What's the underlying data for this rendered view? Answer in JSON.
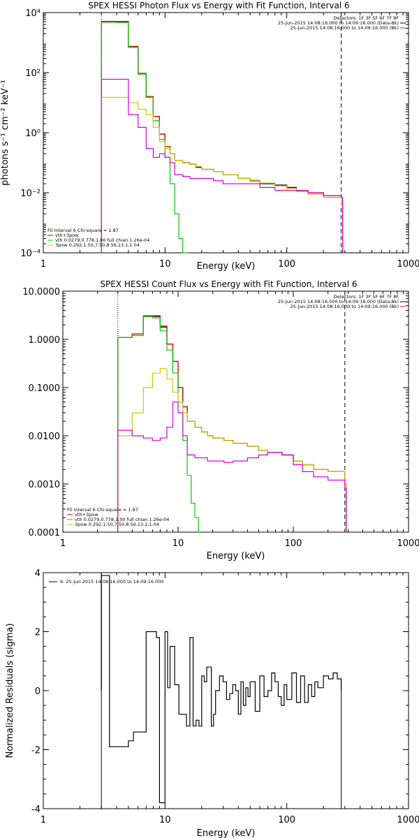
{
  "chart_data": [
    {
      "type": "line",
      "title": "SPEX HESSI Photon Flux vs Energy with Fit Function, Interval 6",
      "xlabel": "Energy (keV)",
      "ylabel": "photons s⁻¹ cm⁻² keV⁻¹",
      "xscale": "log",
      "yscale": "log",
      "xlim": [
        1,
        1000
      ],
      "ylim": [
        0.0001,
        10000
      ],
      "xticks": [
        "1",
        "10",
        "100",
        "1000"
      ],
      "yticks": [
        "10⁻⁴",
        "10⁻²",
        "10⁰",
        "10²",
        "10⁴"
      ],
      "ytick_values": [
        0.0001,
        0.01,
        1,
        100,
        10000
      ],
      "vlines": [
        {
          "x": 3,
          "style": "dotted"
        },
        {
          "x": 280,
          "style": "dashed"
        }
      ],
      "legend_right": [
        "Detectors: 1F 3F 5F 6F 7F 8F",
        "25-Jun-2015 14:08:16.000 to 14:09:16.000 (Data-Bk)",
        "25-Jun-2015 14:08:16.000 to 14:09:16.000 (Bk)"
      ],
      "legend_left": [
        "Fit Interval 6   Chi-square = 1.87",
        "vth+3pow",
        "vth 0.0279,0.778,1.00  full chian 1.26e-04",
        "3pow 0.292,1.50,7.50,8.56,13.1,1.04"
      ],
      "series": [
        {
          "name": "Data-Bk",
          "color": "#000000",
          "x": [
            3,
            4,
            5,
            6,
            7,
            8,
            9,
            10,
            11,
            12,
            14,
            16,
            18,
            20,
            25,
            30,
            40,
            50,
            60,
            80,
            100,
            120,
            150,
            200,
            280
          ],
          "y": [
            5000,
            5000,
            700,
            90,
            15,
            3.5,
            0.9,
            0.3,
            0.2,
            0.12,
            0.1,
            0.09,
            0.07,
            0.06,
            0.05,
            0.04,
            0.03,
            0.025,
            0.02,
            0.018,
            0.015,
            0.012,
            0.01,
            0.008,
            0.004
          ]
        },
        {
          "name": "vth+3pow",
          "color": "#e00000",
          "x": [
            3,
            4,
            5,
            6,
            7,
            8,
            9,
            10,
            11,
            12,
            14,
            16,
            18,
            20,
            25,
            30,
            40,
            50,
            60,
            80,
            100,
            120,
            150,
            200,
            280
          ],
          "y": [
            4800,
            4800,
            750,
            95,
            16,
            3.5,
            0.9,
            0.35,
            0.2,
            0.12,
            0.1,
            0.09,
            0.075,
            0.06,
            0.05,
            0.04,
            0.03,
            0.026,
            0.021,
            0.017,
            0.014,
            0.011,
            0.009,
            0.007,
            0.004
          ]
        },
        {
          "name": "vth",
          "color": "#00cc00",
          "x": [
            3,
            4,
            5,
            6,
            7,
            8,
            9,
            10,
            11,
            12,
            13,
            14,
            15
          ],
          "y": [
            4800,
            4700,
            700,
            90,
            15,
            2.5,
            0.6,
            0.15,
            0.02,
            0.002,
            0.0003,
            0.0001,
            0.0001
          ]
        },
        {
          "name": "3pow",
          "color": "#cccc00",
          "x": [
            3,
            4,
            5,
            6,
            7,
            8,
            9,
            10,
            11,
            12,
            14,
            16,
            18,
            20,
            25,
            30,
            40,
            50,
            60,
            80,
            100,
            120,
            150,
            200,
            280
          ],
          "y": [
            15,
            15,
            10,
            6,
            4,
            1.5,
            0.5,
            0.3,
            0.2,
            0.12,
            0.1,
            0.09,
            0.075,
            0.06,
            0.05,
            0.04,
            0.03,
            0.026,
            0.021,
            0.017,
            0.014,
            0.011,
            0.009,
            0.007,
            0.004
          ]
        },
        {
          "name": "Bk",
          "color": "#dd00dd",
          "x": [
            3,
            4,
            5,
            6,
            7,
            8,
            9,
            10,
            11,
            12,
            14,
            16,
            18,
            20,
            25,
            30,
            40,
            50,
            60,
            80,
            100,
            120,
            150,
            200,
            280
          ],
          "y": [
            60,
            60,
            4,
            1.5,
            0.3,
            0.15,
            0.2,
            0.15,
            0.1,
            0.04,
            0.035,
            0.03,
            0.03,
            0.03,
            0.025,
            0.02,
            0.02,
            0.02,
            0.015,
            0.012,
            0.012,
            0.012,
            0.01,
            0.008,
            0.007
          ]
        }
      ]
    },
    {
      "type": "line",
      "title": "SPEX HESSI Count Flux vs Energy with Fit Function, Interval 6",
      "xlabel": "Energy (keV)",
      "ylabel": "",
      "xscale": "log",
      "yscale": "log",
      "xlim": [
        1,
        1000
      ],
      "ylim": [
        0.0001,
        10
      ],
      "xticks": [
        "1",
        "10",
        "100",
        "1000"
      ],
      "yticks": [
        "0.0001",
        "0.0010",
        "0.0100",
        "0.1000",
        "1.0000",
        "10.0000"
      ],
      "ytick_values": [
        0.0001,
        0.001,
        0.01,
        0.1,
        1,
        10
      ],
      "vlines": [
        {
          "x": 3,
          "style": "dotted"
        },
        {
          "x": 280,
          "style": "dashed"
        }
      ],
      "legend_right": [
        "Detectors: 1F 3F 5F 6F 7F 8F",
        "25-Jun-2015 14:08:16.000 to 14:09:16.000 (Data-Bk)",
        "25-Jun-2015 14:08:16.000 to 14:09:16.000 (Bk)"
      ],
      "legend_left": [
        "Fit Interval 6   Chi-square = 1.87",
        "vth+3pow",
        "vth 0.0279,0.778,1.00  full chian 1.26e-04",
        "3pow 0.292,1.50,7.50,8.56,13.1,1.04"
      ],
      "series": [
        {
          "name": "Data-Bk",
          "color": "#000000",
          "x": [
            3,
            4,
            5,
            6,
            7,
            8,
            9,
            10,
            11,
            12,
            14,
            16,
            18,
            20,
            25,
            30,
            40,
            50,
            60,
            80,
            100,
            120,
            150,
            200,
            280
          ],
          "y": [
            1.1,
            1.3,
            3,
            3,
            1.8,
            0.8,
            0.35,
            0.1,
            0.04,
            0.02,
            0.015,
            0.012,
            0.01,
            0.009,
            0.008,
            0.007,
            0.006,
            0.005,
            0.0045,
            0.004,
            0.003,
            0.0025,
            0.002,
            0.0018,
            0.001
          ]
        },
        {
          "name": "vth+3pow",
          "color": "#e00000",
          "x": [
            3,
            4,
            5,
            6,
            7,
            8,
            9,
            10,
            11,
            12,
            14,
            16,
            18,
            20,
            25,
            30,
            40,
            50,
            60,
            80,
            100,
            120,
            150,
            200,
            280
          ],
          "y": [
            1.1,
            1.3,
            3.1,
            3.1,
            1.9,
            0.8,
            0.35,
            0.1,
            0.04,
            0.02,
            0.015,
            0.012,
            0.01,
            0.009,
            0.008,
            0.007,
            0.006,
            0.005,
            0.0045,
            0.004,
            0.003,
            0.0025,
            0.002,
            0.0018,
            0.001
          ]
        },
        {
          "name": "vth",
          "color": "#00cc00",
          "x": [
            3,
            4,
            5,
            6,
            7,
            8,
            9,
            10,
            11,
            12,
            13,
            14,
            15
          ],
          "y": [
            1.1,
            1.2,
            3,
            2.8,
            1.5,
            0.6,
            0.2,
            0.05,
            0.008,
            0.0015,
            0.0004,
            0.0002,
            0.0001
          ]
        },
        {
          "name": "3pow",
          "color": "#cccc00",
          "x": [
            3,
            4,
            5,
            6,
            7,
            8,
            9,
            10,
            11,
            12,
            14,
            16,
            18,
            20,
            25,
            30,
            40,
            50,
            60,
            80,
            100,
            120,
            150,
            200,
            280
          ],
          "y": [
            0.01,
            0.03,
            0.1,
            0.2,
            0.25,
            0.15,
            0.08,
            0.05,
            0.03,
            0.02,
            0.015,
            0.012,
            0.01,
            0.009,
            0.008,
            0.007,
            0.006,
            0.005,
            0.0045,
            0.004,
            0.003,
            0.0025,
            0.002,
            0.0018,
            0.001
          ]
        },
        {
          "name": "Bk",
          "color": "#dd00dd",
          "x": [
            3,
            4,
            5,
            6,
            7,
            8,
            9,
            10,
            11,
            12,
            14,
            16,
            18,
            20,
            25,
            30,
            40,
            50,
            60,
            80,
            100,
            120,
            150,
            200,
            280
          ],
          "y": [
            0.013,
            0.01,
            0.009,
            0.008,
            0.009,
            0.015,
            0.05,
            0.03,
            0.01,
            0.004,
            0.0035,
            0.0035,
            0.003,
            0.003,
            0.0028,
            0.003,
            0.0035,
            0.004,
            0.0045,
            0.004,
            0.0025,
            0.0018,
            0.0014,
            0.0012,
            0.0008
          ]
        }
      ]
    },
    {
      "type": "line",
      "title": "",
      "xlabel": "Energy (keV)",
      "ylabel": "Normalized Residuals (sigma)",
      "xscale": "log",
      "yscale": "linear",
      "xlim": [
        1,
        1000
      ],
      "ylim": [
        -4,
        4
      ],
      "xticks": [
        "1",
        "10",
        "100",
        "1000"
      ],
      "yticks": [
        "-4",
        "-2",
        "0",
        "2",
        "4"
      ],
      "ytick_values": [
        -4,
        -2,
        0,
        2,
        4
      ],
      "legend_left": [
        "6. 25-Jun-2015 14:08:16.000 to 14:09:16.000"
      ],
      "series": [
        {
          "name": "6. 25-Jun-2015 14:08:16.000 to 14:09:16.000",
          "color": "#000000",
          "edges": [
            3,
            3.5,
            4,
            5,
            5.5,
            6.5,
            7,
            8,
            8.5,
            9,
            10,
            10.5,
            11,
            12,
            13,
            14,
            15,
            16,
            17,
            18,
            19,
            20,
            21,
            22,
            24,
            25,
            26,
            28,
            30,
            32,
            34,
            36,
            38,
            40,
            42,
            44,
            46,
            48,
            50,
            55,
            60,
            65,
            70,
            75,
            80,
            85,
            90,
            95,
            100,
            110,
            120,
            130,
            140,
            150,
            160,
            170,
            180,
            200,
            220,
            240,
            260,
            280
          ],
          "values": [
            3.9,
            -1.9,
            -1.9,
            -1.7,
            -1.4,
            -1.4,
            2,
            2,
            1.8,
            -3.8,
            2,
            0.1,
            1.5,
            0.2,
            -0.8,
            -0.8,
            -1.2,
            1.8,
            -1.2,
            -1,
            -1.2,
            0.5,
            0.3,
            0.8,
            -1.2,
            -0.8,
            0,
            0.5,
            0.3,
            -0.3,
            -0.1,
            0.2,
            0,
            -0.8,
            0.3,
            -0.5,
            0.1,
            -0.2,
            0.3,
            -0.7,
            0.5,
            -0.2,
            0,
            0.6,
            0.3,
            -0.2,
            -0.5,
            0.2,
            -0.3,
            0.6,
            -0.4,
            0.5,
            -0.4,
            0.2,
            -0.2,
            0.3,
            0.1,
            0.5,
            0.4,
            0.6,
            0.4
          ]
        }
      ]
    }
  ]
}
